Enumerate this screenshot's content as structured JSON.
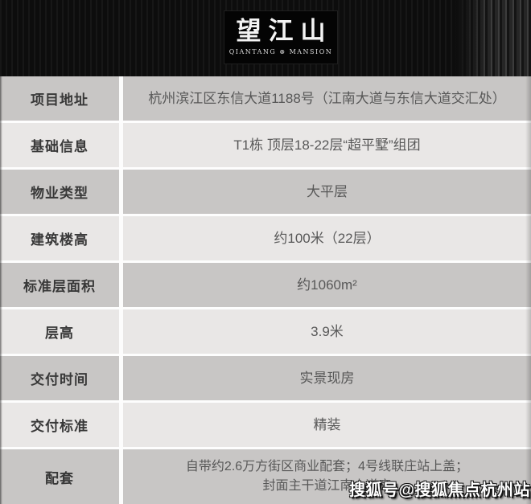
{
  "hero": {
    "logo": {
      "title": "望江山",
      "subtitle": "QIANTANG ⊗ MANSION"
    }
  },
  "table": {
    "rows": [
      {
        "label": "项目地址",
        "value": "杭州滨江区东信大道1188号（江南大道与东信大道交汇处）"
      },
      {
        "label": "基础信息",
        "value": "T1栋 顶层18-22层“超平墅”组团"
      },
      {
        "label": "物业类型",
        "value": "大平层"
      },
      {
        "label": "建筑楼高",
        "value": "约100米（22层）"
      },
      {
        "label": "标准层面积",
        "value": "约1060m²"
      },
      {
        "label": "层高",
        "value": "3.9米"
      },
      {
        "label": "交付时间",
        "value": "实景现房"
      },
      {
        "label": "交付标准",
        "value": "精装"
      },
      {
        "label": "配套",
        "value": "自带约2.6万方街区商业配套；4号线联庄站上盖；\n封面主干道江南大道旁"
      }
    ]
  },
  "watermark": {
    "text": "搜狐号@搜狐焦点杭州站"
  },
  "colors": {
    "hero_background": "#0d0d0d",
    "logo_box_background": "#040404",
    "row_dark": "#c8c6c5",
    "row_light": "#e9e7e6",
    "separator": "#fcfcfc",
    "label_text": "#383838",
    "value_text": "#585858",
    "watermark_text": "#ffffff"
  }
}
